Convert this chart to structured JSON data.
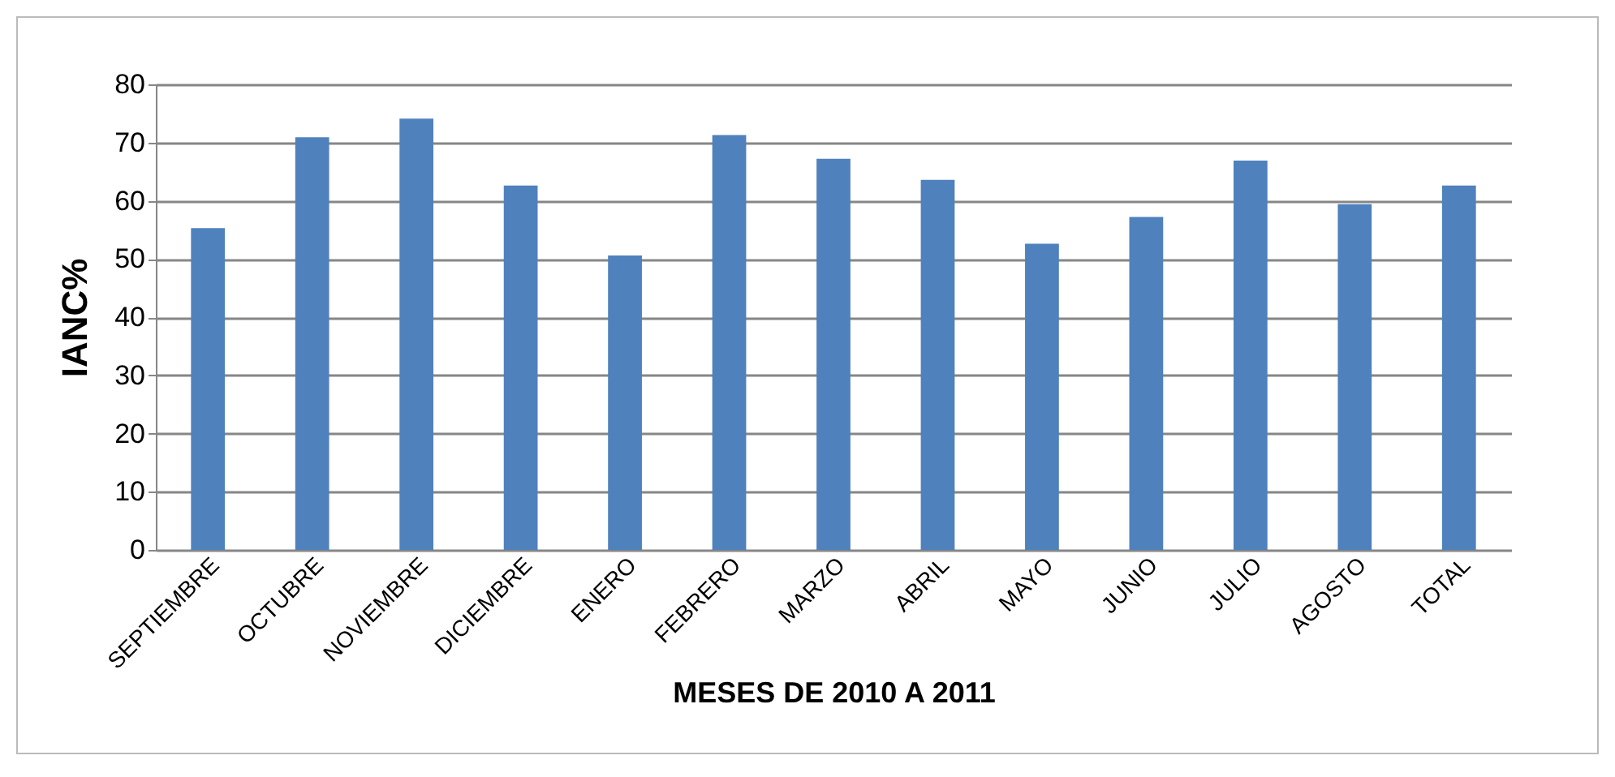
{
  "chart_data": {
    "type": "bar",
    "xlabel": "MESES DE 2010 A 2011",
    "ylabel": "IANC%",
    "categories": [
      "SEPTIEMBRE",
      "OCTUBRE",
      "NOVIEMBRE",
      "DICIEMBRE",
      "ENERO",
      "FEBRERO",
      "MARZO",
      "ABRIL",
      "MAYO",
      "JUNIO",
      "JULIO",
      "AGOSTO",
      "TOTAL"
    ],
    "values": [
      55.3,
      70.9,
      74.1,
      62.6,
      50.6,
      71.3,
      67.2,
      63.6,
      52.6,
      57.2,
      66.9,
      59.4,
      62.6
    ],
    "color": "#4f81bd",
    "ylim": [
      0,
      80
    ],
    "yticks": [
      0,
      10,
      20,
      30,
      40,
      50,
      60,
      70,
      80
    ],
    "grid": "y"
  }
}
